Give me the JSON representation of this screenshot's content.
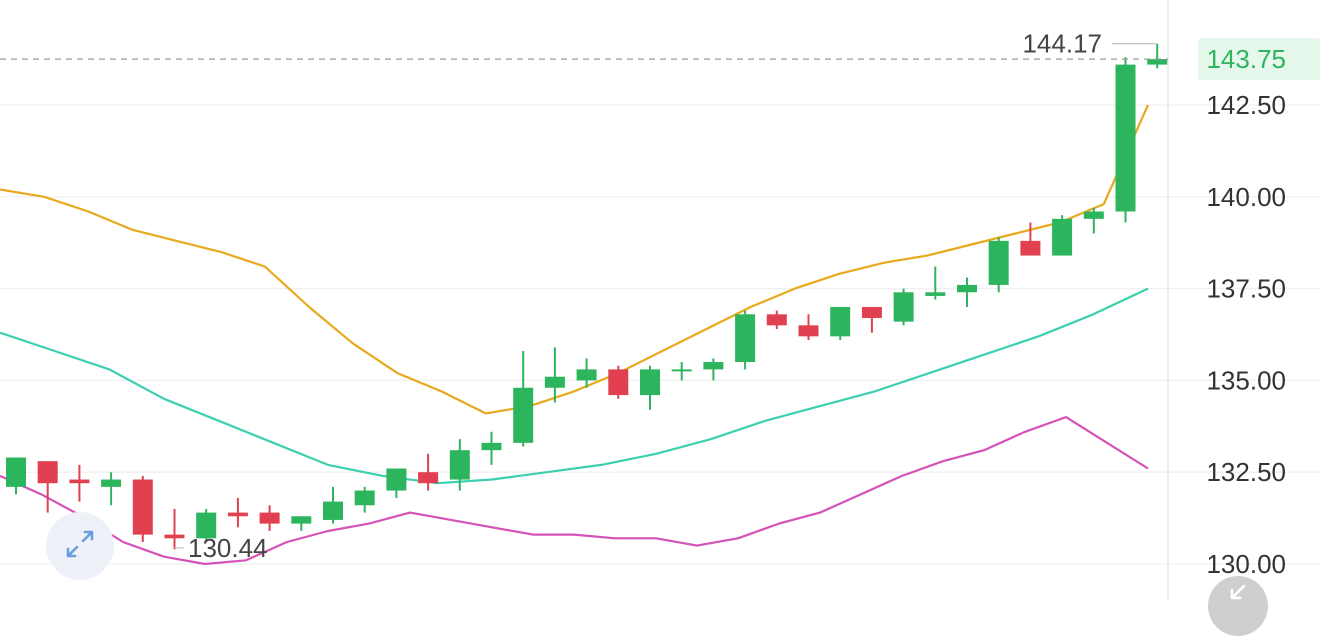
{
  "chart_data": {
    "type": "candlestick",
    "ylim": [
      129.0,
      145.5
    ],
    "y_ticks": [
      "142.50",
      "140.00",
      "137.50",
      "135.00",
      "132.50",
      "130.00"
    ],
    "y_tick_values": [
      142.5,
      140.0,
      137.5,
      135.0,
      132.5,
      130.0
    ],
    "last_price": 143.75,
    "last_price_label": "143.75",
    "max_label": "144.17",
    "max_value": 144.17,
    "min_label": "130.44",
    "min_value": 130.44,
    "colors": {
      "up": "#2db55d",
      "down": "#e0404f",
      "ma_fast": "#e8a91c",
      "ma_mid": "#3ccfb0",
      "ma_slow": "#d651b8",
      "last_price": "#2db55d",
      "last_price_bg": "#e6f7ec",
      "grid": "#f0f0f0",
      "axis_text": "#333333"
    },
    "candles": [
      {
        "o": 132.1,
        "h": 132.9,
        "l": 131.9,
        "c": 132.9
      },
      {
        "o": 132.8,
        "h": 132.8,
        "l": 131.4,
        "c": 132.2
      },
      {
        "o": 132.3,
        "h": 132.7,
        "l": 131.7,
        "c": 132.2
      },
      {
        "o": 132.1,
        "h": 132.5,
        "l": 131.6,
        "c": 132.3
      },
      {
        "o": 132.3,
        "h": 132.4,
        "l": 130.6,
        "c": 130.8
      },
      {
        "o": 130.8,
        "h": 131.5,
        "l": 130.4,
        "c": 130.7
      },
      {
        "o": 130.7,
        "h": 131.5,
        "l": 130.6,
        "c": 131.4
      },
      {
        "o": 131.4,
        "h": 131.8,
        "l": 131.0,
        "c": 131.3
      },
      {
        "o": 131.4,
        "h": 131.6,
        "l": 130.9,
        "c": 131.1
      },
      {
        "o": 131.1,
        "h": 131.3,
        "l": 130.9,
        "c": 131.3
      },
      {
        "o": 131.2,
        "h": 132.1,
        "l": 131.1,
        "c": 131.7
      },
      {
        "o": 131.6,
        "h": 132.1,
        "l": 131.4,
        "c": 132.0
      },
      {
        "o": 132.0,
        "h": 132.6,
        "l": 131.8,
        "c": 132.6
      },
      {
        "o": 132.5,
        "h": 133.0,
        "l": 132.0,
        "c": 132.2
      },
      {
        "o": 132.3,
        "h": 133.4,
        "l": 132.0,
        "c": 133.1
      },
      {
        "o": 133.1,
        "h": 133.6,
        "l": 132.7,
        "c": 133.3
      },
      {
        "o": 133.3,
        "h": 135.8,
        "l": 133.2,
        "c": 134.8
      },
      {
        "o": 134.8,
        "h": 135.9,
        "l": 134.4,
        "c": 135.1
      },
      {
        "o": 135.0,
        "h": 135.6,
        "l": 134.8,
        "c": 135.3
      },
      {
        "o": 135.3,
        "h": 135.4,
        "l": 134.5,
        "c": 134.6
      },
      {
        "o": 134.6,
        "h": 135.4,
        "l": 134.2,
        "c": 135.3
      },
      {
        "o": 135.3,
        "h": 135.5,
        "l": 135.0,
        "c": 135.3
      },
      {
        "o": 135.3,
        "h": 135.6,
        "l": 135.0,
        "c": 135.5
      },
      {
        "o": 135.5,
        "h": 136.9,
        "l": 135.3,
        "c": 136.8
      },
      {
        "o": 136.8,
        "h": 136.9,
        "l": 136.4,
        "c": 136.5
      },
      {
        "o": 136.5,
        "h": 136.8,
        "l": 136.1,
        "c": 136.2
      },
      {
        "o": 136.2,
        "h": 137.0,
        "l": 136.1,
        "c": 137.0
      },
      {
        "o": 137.0,
        "h": 137.0,
        "l": 136.3,
        "c": 136.7
      },
      {
        "o": 136.6,
        "h": 137.5,
        "l": 136.5,
        "c": 137.4
      },
      {
        "o": 137.3,
        "h": 138.1,
        "l": 137.2,
        "c": 137.4
      },
      {
        "o": 137.4,
        "h": 137.8,
        "l": 137.0,
        "c": 137.6
      },
      {
        "o": 137.6,
        "h": 138.9,
        "l": 137.4,
        "c": 138.8
      },
      {
        "o": 138.8,
        "h": 139.3,
        "l": 138.4,
        "c": 138.4
      },
      {
        "o": 138.4,
        "h": 139.5,
        "l": 138.4,
        "c": 139.4
      },
      {
        "o": 139.4,
        "h": 139.7,
        "l": 139.0,
        "c": 139.6
      },
      {
        "o": 139.6,
        "h": 143.8,
        "l": 139.3,
        "c": 143.6
      },
      {
        "o": 143.6,
        "h": 144.17,
        "l": 143.5,
        "c": 143.75
      }
    ],
    "series": [
      {
        "values": [
          140.2,
          140.0,
          139.6,
          139.1,
          138.8,
          138.5,
          138.1,
          137.0,
          136.0,
          135.2,
          134.7,
          134.1,
          134.3,
          134.7,
          135.2,
          135.8,
          136.4,
          137.0,
          137.5,
          137.9,
          138.2,
          138.4,
          138.7,
          139.0,
          139.3,
          139.8,
          142.5
        ]
      },
      {
        "values": [
          136.3,
          135.8,
          135.3,
          134.5,
          133.9,
          133.3,
          132.7,
          132.4,
          132.2,
          132.3,
          132.5,
          132.7,
          133.0,
          133.4,
          133.9,
          134.3,
          134.7,
          135.2,
          135.7,
          136.2,
          136.8,
          137.5
        ]
      },
      {
        "values": [
          132.4,
          131.9,
          131.3,
          130.6,
          130.2,
          130.0,
          130.1,
          130.6,
          130.9,
          131.1,
          131.4,
          131.2,
          131.0,
          130.8,
          130.8,
          130.7,
          130.7,
          130.5,
          130.7,
          131.1,
          131.4,
          131.9,
          132.4,
          132.8,
          133.1,
          133.6,
          134.0,
          133.3,
          132.6
        ]
      }
    ]
  },
  "ui": {
    "fullscreen_icon": "expand-arrows-icon",
    "scroll_icon": "scroll-to-latest-icon"
  }
}
